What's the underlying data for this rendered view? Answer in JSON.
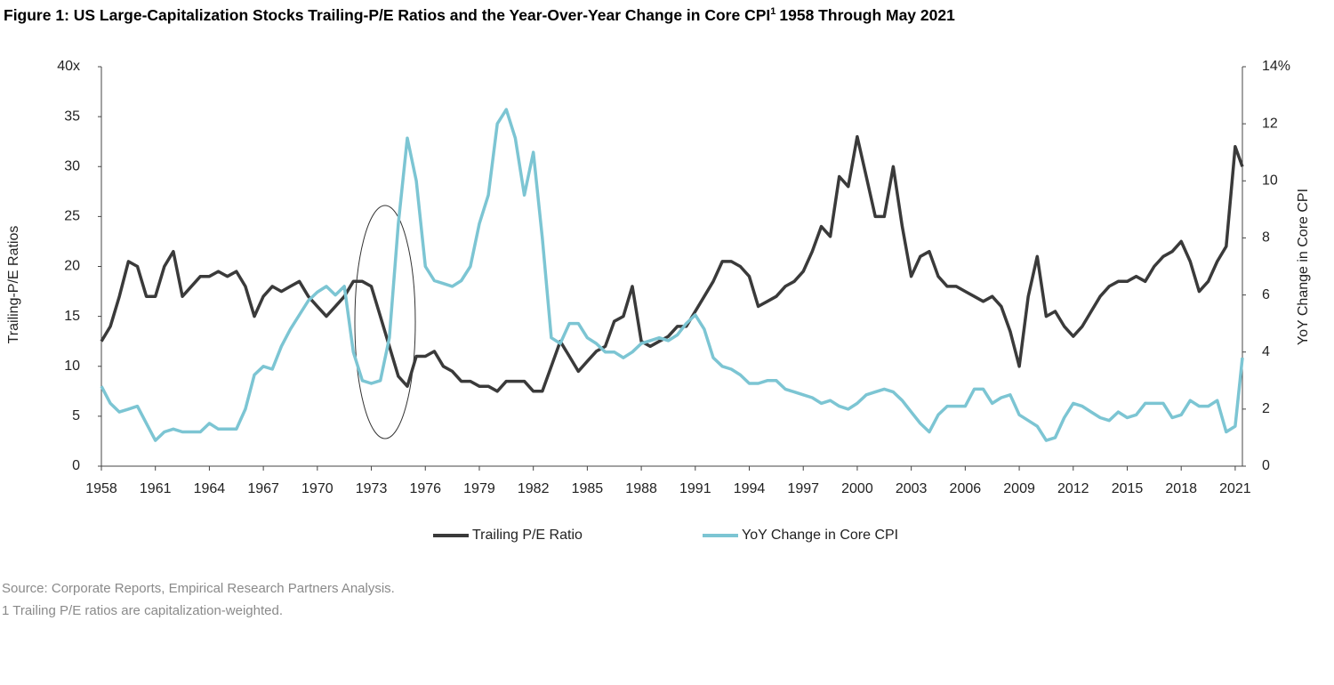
{
  "chart_data": {
    "type": "line",
    "title": "Figure 1: US Large-Capitalization Stocks Trailing-P/E Ratios and the Year-Over-Year Change in Core CPI",
    "title_footnote_mark": "1",
    "title_suffix": "1958 Through May 2021",
    "ylabel": "Trailing-P/E Ratios",
    "y2label": "YoY Change in Core CPI",
    "source": "Source: Corporate Reports, Empirical Research Partners Analysis.",
    "footnote": "1 Trailing P/E ratios are capitalization-weighted.",
    "legend": "bottom",
    "xlim": [
      1958,
      2021.4
    ],
    "xticks": [
      1958,
      1961,
      1964,
      1967,
      1970,
      1973,
      1976,
      1979,
      1982,
      1985,
      1988,
      1991,
      1994,
      1997,
      2000,
      2003,
      2006,
      2009,
      2012,
      2015,
      2018,
      2021
    ],
    "ylim": [
      0,
      40
    ],
    "yticks": [
      0,
      5,
      10,
      15,
      20,
      25,
      30,
      35,
      {
        "value": 40,
        "label": "40x"
      }
    ],
    "y2lim": [
      0,
      14
    ],
    "y2ticks": [
      0,
      2,
      4,
      6,
      8,
      10,
      12,
      {
        "value": 14,
        "label": "14%"
      }
    ],
    "x": [
      1958,
      1958.5,
      1959,
      1959.5,
      1960,
      1960.5,
      1961,
      1961.5,
      1962,
      1962.5,
      1963,
      1963.5,
      1964,
      1964.5,
      1965,
      1965.5,
      1966,
      1966.5,
      1967,
      1967.5,
      1968,
      1968.5,
      1969,
      1969.5,
      1970,
      1970.5,
      1971,
      1971.5,
      1972,
      1972.5,
      1973,
      1973.5,
      1974,
      1974.5,
      1975,
      1975.5,
      1976,
      1976.5,
      1977,
      1977.5,
      1978,
      1978.5,
      1979,
      1979.5,
      1980,
      1980.5,
      1981,
      1981.5,
      1982,
      1982.5,
      1983,
      1983.5,
      1984,
      1984.5,
      1985,
      1985.5,
      1986,
      1986.5,
      1987,
      1987.5,
      1988,
      1988.5,
      1989,
      1989.5,
      1990,
      1990.5,
      1991,
      1991.5,
      1992,
      1992.5,
      1993,
      1993.5,
      1994,
      1994.5,
      1995,
      1995.5,
      1996,
      1996.5,
      1997,
      1997.5,
      1998,
      1998.5,
      1999,
      1999.5,
      2000,
      2000.5,
      2001,
      2001.5,
      2002,
      2002.5,
      2003,
      2003.5,
      2004,
      2004.5,
      2005,
      2005.5,
      2006,
      2006.5,
      2007,
      2007.5,
      2008,
      2008.5,
      2009,
      2009.5,
      2010,
      2010.5,
      2011,
      2011.5,
      2012,
      2012.5,
      2013,
      2013.5,
      2014,
      2014.5,
      2015,
      2015.5,
      2016,
      2016.5,
      2017,
      2017.5,
      2018,
      2018.5,
      2019,
      2019.5,
      2020,
      2020.5,
      2021,
      2021.4
    ],
    "series": [
      {
        "name": "Trailing P/E Ratio",
        "color": "#3a3a3a",
        "values": [
          12.5,
          14,
          17,
          20.5,
          20,
          17,
          17,
          20,
          21.5,
          17,
          18,
          19,
          19,
          19.5,
          19,
          19.5,
          18,
          15,
          17,
          18,
          17.5,
          18,
          18.5,
          17,
          16,
          15,
          16,
          17,
          18.5,
          18.5,
          18,
          15,
          12,
          9,
          8,
          11,
          11,
          11.5,
          10,
          9.5,
          8.5,
          8.5,
          8,
          8,
          7.5,
          8.5,
          8.5,
          8.5,
          7.5,
          7.5,
          10,
          12.5,
          11,
          9.5,
          10.5,
          11.5,
          12,
          14.5,
          15,
          18,
          12.5,
          12,
          12.5,
          13,
          14,
          14,
          15.5,
          17,
          18.5,
          20.5,
          20.5,
          20,
          19,
          16,
          16.5,
          17,
          18,
          18.5,
          19.5,
          21.5,
          24,
          23,
          29,
          28,
          33,
          29,
          25,
          25,
          30,
          24,
          19,
          21,
          21.5,
          19,
          18,
          18,
          17.5,
          17,
          16.5,
          17,
          16,
          13.5,
          10,
          17,
          21,
          15,
          15.5,
          14,
          13,
          14,
          15.5,
          17,
          18,
          18.5,
          18.5,
          19,
          18.5,
          20,
          21,
          21.5,
          22.5,
          20.5,
          17.5,
          18.5,
          20.5,
          22,
          32,
          30
        ]
      },
      {
        "name": "YoY Change in Core CPI",
        "color": "#7cc5d3",
        "axis": "y2",
        "values": [
          2.8,
          2.2,
          1.9,
          2.0,
          2.1,
          1.5,
          0.9,
          1.2,
          1.3,
          1.2,
          1.2,
          1.2,
          1.5,
          1.3,
          1.3,
          1.3,
          2.0,
          3.2,
          3.5,
          3.4,
          4.2,
          4.8,
          5.3,
          5.8,
          6.1,
          6.3,
          6.0,
          6.3,
          4.0,
          3.0,
          2.9,
          3.0,
          4.5,
          8.5,
          11.5,
          10,
          7,
          6.5,
          6.4,
          6.3,
          6.5,
          7,
          8.5,
          9.5,
          12,
          12.5,
          11.5,
          9.5,
          11,
          8,
          4.5,
          4.3,
          5,
          5,
          4.5,
          4.3,
          4,
          4,
          3.8,
          4.0,
          4.3,
          4.4,
          4.5,
          4.4,
          4.6,
          5.0,
          5.3,
          4.8,
          3.8,
          3.5,
          3.4,
          3.2,
          2.9,
          2.9,
          3.0,
          3.0,
          2.7,
          2.6,
          2.5,
          2.4,
          2.2,
          2.3,
          2.1,
          2.0,
          2.2,
          2.5,
          2.6,
          2.7,
          2.6,
          2.3,
          1.9,
          1.5,
          1.2,
          1.8,
          2.1,
          2.1,
          2.1,
          2.7,
          2.7,
          2.2,
          2.4,
          2.5,
          1.8,
          1.6,
          1.4,
          0.9,
          1.0,
          1.7,
          2.2,
          2.1,
          1.9,
          1.7,
          1.6,
          1.9,
          1.7,
          1.8,
          2.2,
          2.2,
          2.2,
          1.7,
          1.8,
          2.3,
          2.1,
          2.1,
          2.3,
          1.2,
          1.4,
          3.8
        ]
      }
    ]
  }
}
